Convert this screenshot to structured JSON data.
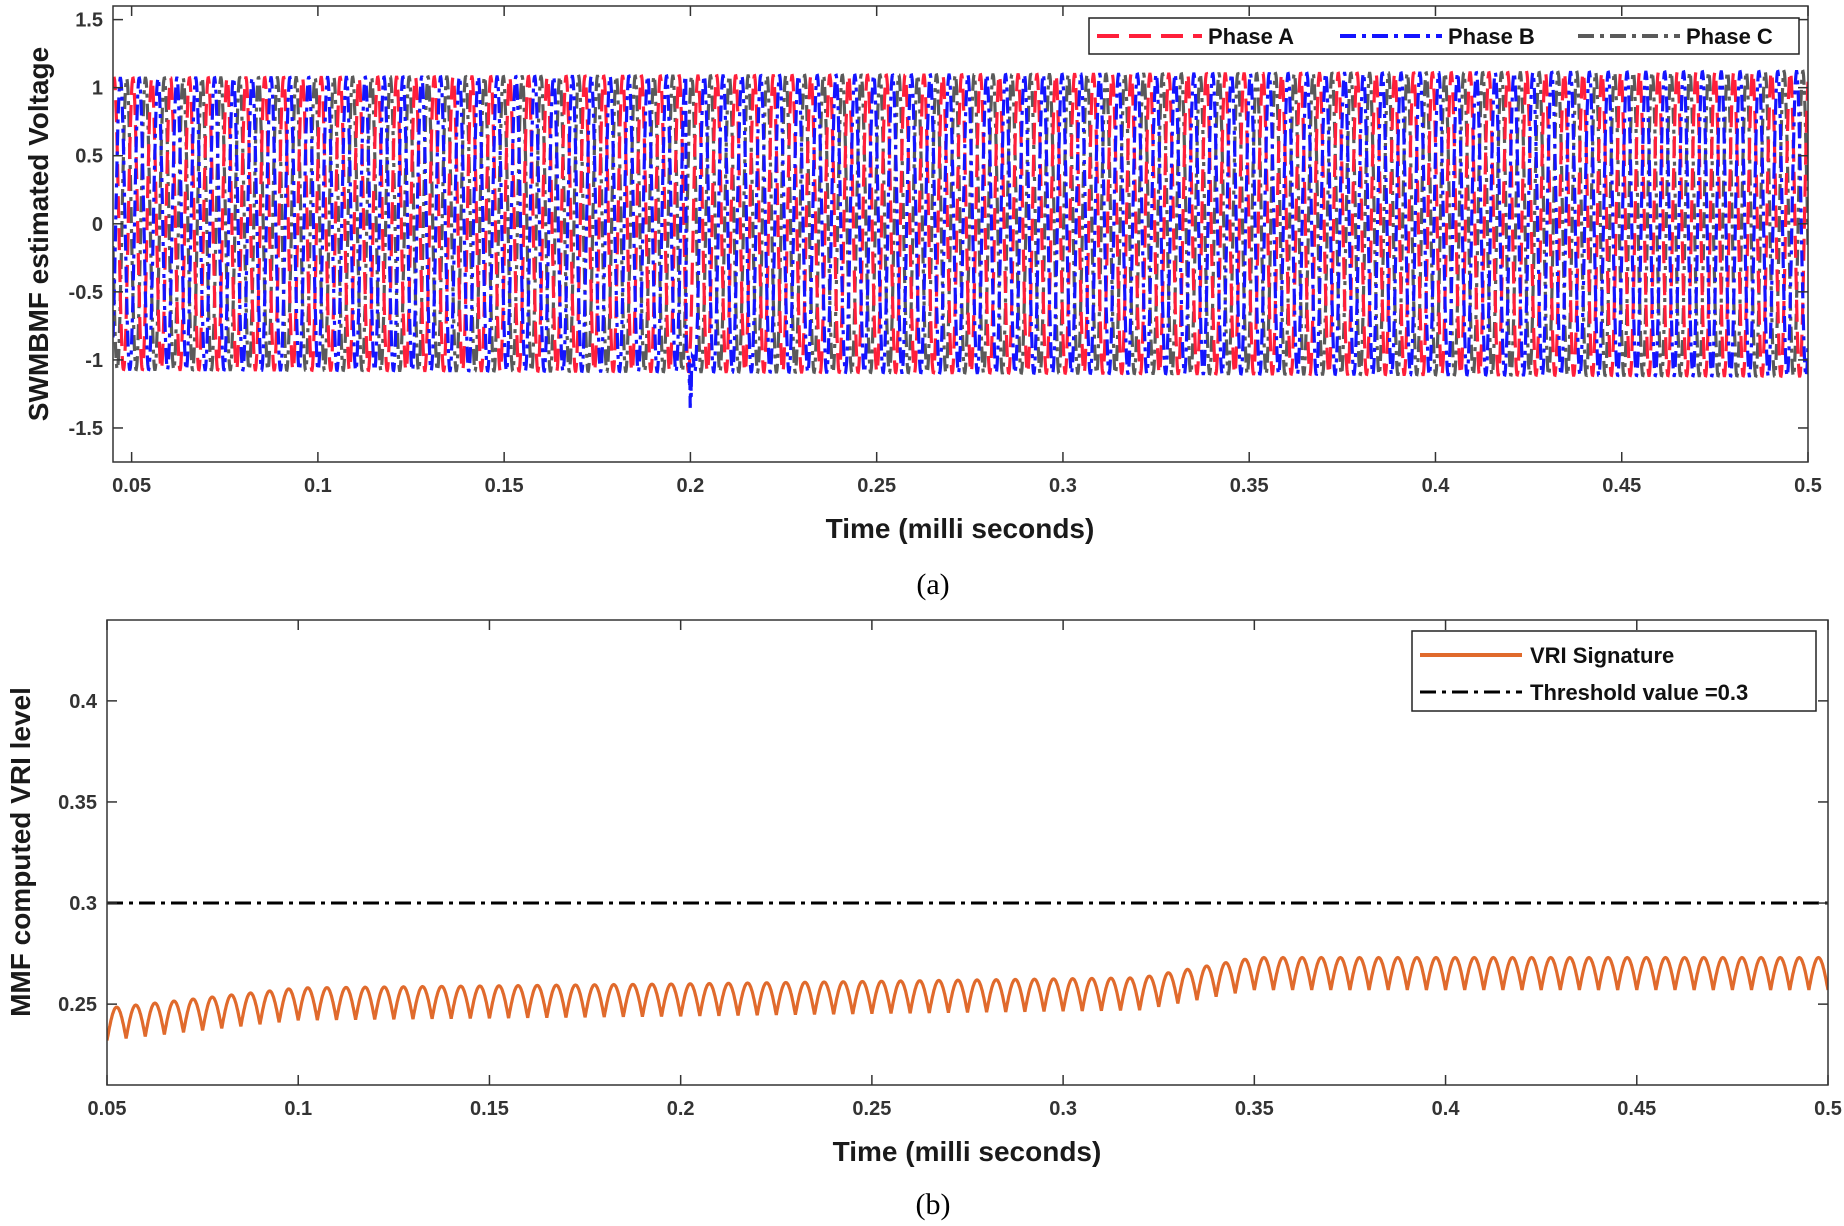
{
  "chart_data": [
    {
      "type": "line",
      "panel": "(a)",
      "xlabel": "Time (milli seconds)",
      "ylabel": "SWMBMF estimated Voltage",
      "xlim": [
        0.045,
        0.5
      ],
      "ylim": [
        -1.75,
        1.6
      ],
      "xticks": [
        0.05,
        0.1,
        0.15,
        0.2,
        0.25,
        0.3,
        0.35,
        0.4,
        0.45,
        0.5
      ],
      "xtick_labels": [
        "0.05",
        "0.1",
        "0.15",
        "0.2",
        "0.25",
        "0.3",
        "0.35",
        "0.4",
        "0.45",
        "0.5"
      ],
      "yticks": [
        -1.5,
        -1,
        -0.5,
        0,
        0.5,
        1,
        1.5
      ],
      "ytick_labels": [
        "-1.5",
        "-1",
        "-0.5",
        "0",
        "0.5",
        "1",
        "1.5"
      ],
      "legend_position": "top-right",
      "signal": {
        "cycles": 90,
        "amplitude_start": 1.07,
        "amplitude_end": 1.12,
        "phase_shift_deg": 120,
        "disturbance": {
          "series": "Phase B",
          "x": 0.2,
          "min_value": -1.45
        }
      },
      "series": [
        {
          "name": "Phase A",
          "color": "#ff1f3a",
          "dash": "dashed"
        },
        {
          "name": "Phase B",
          "color": "#1414ff",
          "dash": "dashdot"
        },
        {
          "name": "Phase C",
          "color": "#5a5a5a",
          "dash": "dashdot"
        }
      ]
    },
    {
      "type": "line",
      "panel": "(b)",
      "xlabel": "Time (milli seconds)",
      "ylabel": "MMF computed VRI level",
      "xlim": [
        0.05,
        0.5
      ],
      "ylim": [
        0.21,
        0.44
      ],
      "xticks": [
        0.05,
        0.1,
        0.15,
        0.2,
        0.25,
        0.3,
        0.35,
        0.4,
        0.45,
        0.5
      ],
      "xtick_labels": [
        "0.05",
        "0.1",
        "0.15",
        "0.2",
        "0.25",
        "0.3",
        "0.35",
        "0.4",
        "0.45",
        "0.5"
      ],
      "yticks": [
        0.25,
        0.3,
        0.35,
        0.4
      ],
      "ytick_labels": [
        "0.25",
        "0.3",
        "0.35",
        "0.4"
      ],
      "legend_position": "top-right",
      "signature": {
        "cycles": 90,
        "ripple": 0.016,
        "baseline_points": [
          [
            0.05,
            0.24
          ],
          [
            0.1,
            0.25
          ],
          [
            0.2,
            0.252
          ],
          [
            0.32,
            0.255
          ],
          [
            0.35,
            0.265
          ],
          [
            0.5,
            0.265
          ]
        ]
      },
      "series": [
        {
          "name": "VRI Signature",
          "color": "#e06a2c",
          "dash": "solid"
        },
        {
          "name": "Threshold value =0.3",
          "color": "#000000",
          "dash": "dashdot",
          "value": 0.3
        }
      ]
    }
  ],
  "captions": {
    "a": "(a)",
    "b": "(b)"
  }
}
